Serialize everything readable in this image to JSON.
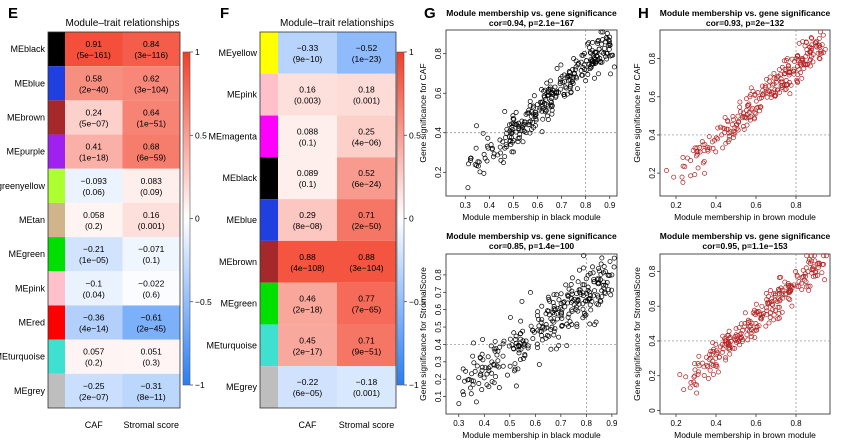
{
  "panels": {
    "E": {
      "letter": "E",
      "title": "Module–trait relationships",
      "rows": [
        {
          "label": "MEblack",
          "color": "#000000",
          "cells": [
            {
              "r": 0.91,
              "p": "(5e−161)"
            },
            {
              "r": 0.84,
              "p": "(3e−116)"
            }
          ]
        },
        {
          "label": "MEblue",
          "color": "#1f3fe0",
          "cells": [
            {
              "r": 0.58,
              "p": "(2e−40)"
            },
            {
              "r": 0.62,
              "p": "(3e−104)"
            }
          ]
        },
        {
          "label": "MEbrown",
          "color": "#a5292a",
          "cells": [
            {
              "r": 0.24,
              "p": "(5e−07)"
            },
            {
              "r": 0.64,
              "p": "(1e−51)"
            }
          ]
        },
        {
          "label": "MEpurple",
          "color": "#a020f0",
          "cells": [
            {
              "r": 0.41,
              "p": "(1e−18)"
            },
            {
              "r": 0.68,
              "p": "(6e−59)"
            }
          ]
        },
        {
          "label": "MEgreenyellow",
          "color": "#adff2f",
          "cells": [
            {
              "r": -0.093,
              "p": "(0.06)"
            },
            {
              "r": 0.083,
              "p": "(0.09)"
            }
          ]
        },
        {
          "label": "MEtan",
          "color": "#d2b48c",
          "cells": [
            {
              "r": 0.058,
              "p": "(0.2)"
            },
            {
              "r": 0.16,
              "p": "(0.001)"
            }
          ]
        },
        {
          "label": "MEgreen",
          "color": "#00e000",
          "cells": [
            {
              "r": -0.21,
              "p": "(1e−05)"
            },
            {
              "r": -0.071,
              "p": "(0.1)"
            }
          ]
        },
        {
          "label": "MEpink",
          "color": "#ffc0cb",
          "cells": [
            {
              "r": -0.1,
              "p": "(0.04)"
            },
            {
              "r": -0.022,
              "p": "(0.6)"
            }
          ]
        },
        {
          "label": "MEred",
          "color": "#ff0000",
          "cells": [
            {
              "r": -0.36,
              "p": "(4e−14)"
            },
            {
              "r": -0.61,
              "p": "(2e−45)"
            }
          ]
        },
        {
          "label": "MEturquoise",
          "color": "#40e0d0",
          "cells": [
            {
              "r": 0.057,
              "p": "(0.2)"
            },
            {
              "r": 0.051,
              "p": "(0.3)"
            }
          ]
        },
        {
          "label": "MEgrey",
          "color": "#bebebe",
          "cells": [
            {
              "r": -0.25,
              "p": "(2e−07)"
            },
            {
              "r": -0.31,
              "p": "(8e−11)"
            }
          ]
        }
      ],
      "columns": [
        "CAF",
        "Stromal score"
      ],
      "scale_ticks": [
        "1",
        "0.5",
        "0",
        "−0.5",
        "−1"
      ]
    },
    "F": {
      "letter": "F",
      "title": "Module–trait relationships",
      "rows": [
        {
          "label": "MEyellow",
          "color": "#ffff00",
          "cells": [
            {
              "r": -0.33,
              "p": "(9e−10)"
            },
            {
              "r": -0.52,
              "p": "(1e−23)"
            }
          ]
        },
        {
          "label": "MEpink",
          "color": "#ffc0cb",
          "cells": [
            {
              "r": 0.16,
              "p": "(0.003)"
            },
            {
              "r": 0.18,
              "p": "(0.001)"
            }
          ]
        },
        {
          "label": "MEmagenta",
          "color": "#ff00ff",
          "cells": [
            {
              "r": 0.088,
              "p": "(0.1)"
            },
            {
              "r": 0.25,
              "p": "(4e−06)"
            }
          ]
        },
        {
          "label": "MEblack",
          "color": "#000000",
          "cells": [
            {
              "r": 0.089,
              "p": "(0.1)"
            },
            {
              "r": 0.52,
              "p": "(6e−24)"
            }
          ]
        },
        {
          "label": "MEblue",
          "color": "#1f3fe0",
          "cells": [
            {
              "r": 0.29,
              "p": "(8e−08)"
            },
            {
              "r": 0.71,
              "p": "(2e−50)"
            }
          ]
        },
        {
          "label": "MEbrown",
          "color": "#a5292a",
          "cells": [
            {
              "r": 0.88,
              "p": "(4e−108)"
            },
            {
              "r": 0.88,
              "p": "(3e−104)"
            }
          ]
        },
        {
          "label": "MEgreen",
          "color": "#00e000",
          "cells": [
            {
              "r": 0.46,
              "p": "(2e−18)"
            },
            {
              "r": 0.77,
              "p": "(7e−65)"
            }
          ]
        },
        {
          "label": "MEturquoise",
          "color": "#40e0d0",
          "cells": [
            {
              "r": 0.45,
              "p": "(2e−17)"
            },
            {
              "r": 0.71,
              "p": "(9e−51)"
            }
          ]
        },
        {
          "label": "MEgrey",
          "color": "#bebebe",
          "cells": [
            {
              "r": -0.22,
              "p": "(6e−05)"
            },
            {
              "r": -0.18,
              "p": "(0.001)"
            }
          ]
        }
      ],
      "columns": [
        "CAF",
        "Stromal score"
      ],
      "scale_ticks": [
        "1",
        "0.5",
        "0",
        "−0.5",
        "−1"
      ]
    },
    "G": {
      "letter": "G"
    },
    "H": {
      "letter": "H"
    }
  },
  "chart_data": [
    {
      "type": "heatmap",
      "panel": "E",
      "title": "Module–trait relationships",
      "rows": [
        "MEblack",
        "MEblue",
        "MEbrown",
        "MEpurple",
        "MEgreenyellow",
        "MEtan",
        "MEgreen",
        "MEpink",
        "MEred",
        "MEturquoise",
        "MEgrey"
      ],
      "columns": [
        "CAF",
        "Stromal score"
      ],
      "values": [
        [
          0.91,
          0.84
        ],
        [
          0.58,
          0.62
        ],
        [
          0.24,
          0.64
        ],
        [
          0.41,
          0.68
        ],
        [
          -0.093,
          0.083
        ],
        [
          0.058,
          0.16
        ],
        [
          -0.21,
          -0.071
        ],
        [
          -0.1,
          -0.022
        ],
        [
          -0.36,
          -0.61
        ],
        [
          0.057,
          0.051
        ],
        [
          -0.25,
          -0.31
        ]
      ],
      "color_range": [
        -1,
        1
      ]
    },
    {
      "type": "heatmap",
      "panel": "F",
      "title": "Module–trait relationships",
      "rows": [
        "MEyellow",
        "MEpink",
        "MEmagenta",
        "MEblack",
        "MEblue",
        "MEbrown",
        "MEgreen",
        "MEturquoise",
        "MEgrey"
      ],
      "columns": [
        "CAF",
        "Stromal score"
      ],
      "values": [
        [
          -0.33,
          -0.52
        ],
        [
          0.16,
          0.18
        ],
        [
          0.088,
          0.25
        ],
        [
          0.089,
          0.52
        ],
        [
          0.29,
          0.71
        ],
        [
          0.88,
          0.88
        ],
        [
          0.46,
          0.77
        ],
        [
          0.45,
          0.71
        ],
        [
          -0.22,
          -0.18
        ]
      ],
      "color_range": [
        -1,
        1
      ]
    },
    {
      "type": "scatter",
      "panel": "G-top",
      "color": "#000000",
      "title": "Module membership vs. gene significance",
      "subtitle": "cor=0.94, p=2.1e−167",
      "xlabel": "Module membership in black module",
      "ylabel": "Gene significance for CAF",
      "xlim": [
        0.22,
        0.93
      ],
      "ylim": [
        0.08,
        0.92
      ],
      "xticks": [
        0.3,
        0.4,
        0.5,
        0.6,
        0.7,
        0.8,
        0.9
      ],
      "yticks": [
        0.2,
        0.4,
        0.6,
        0.8
      ],
      "ref_x": 0.8,
      "ref_y": 0.4,
      "trend": {
        "x0": 0.28,
        "x1": 0.9,
        "y_at_x0": 0.15,
        "y_at_x1": 0.85,
        "spread": 0.05
      },
      "n_points": 300,
      "seed": 11
    },
    {
      "type": "scatter",
      "panel": "G-bottom",
      "color": "#000000",
      "title": "Module membership vs. gene significance",
      "subtitle": "cor=0.85, p=1.4e−100",
      "xlabel": "Module membership in black module",
      "ylabel": "Gene significance for StromalScore",
      "xlim": [
        0.25,
        0.92
      ],
      "ylim": [
        0.0,
        0.92
      ],
      "xticks": [
        0.3,
        0.4,
        0.5,
        0.6,
        0.7,
        0.8,
        0.9
      ],
      "yticks": [
        0.1,
        0.2,
        0.3,
        0.4,
        0.5,
        0.6,
        0.7,
        0.8
      ],
      "ref_x": 0.8,
      "ref_y": 0.4,
      "trend": {
        "x0": 0.3,
        "x1": 0.9,
        "y_at_x0": 0.15,
        "y_at_x1": 0.8,
        "spread": 0.08
      },
      "n_points": 300,
      "seed": 23
    },
    {
      "type": "scatter",
      "panel": "H-top",
      "color": "#b22222",
      "title": "Module membership vs. gene significance",
      "subtitle": "cor=0.93, p=2e−132",
      "xlabel": "Module membership in brown module",
      "ylabel": "Gene significance for CAF",
      "xlim": [
        0.12,
        0.97
      ],
      "ylim": [
        0.08,
        0.95
      ],
      "xticks": [
        0.2,
        0.4,
        0.6,
        0.8
      ],
      "yticks": [
        0.2,
        0.4,
        0.6,
        0.8
      ],
      "ref_x": 0.8,
      "ref_y": 0.4,
      "trend": {
        "x0": 0.18,
        "x1": 0.93,
        "y_at_x0": 0.15,
        "y_at_x1": 0.88,
        "spread": 0.045
      },
      "n_points": 260,
      "seed": 37
    },
    {
      "type": "scatter",
      "panel": "H-bottom",
      "color": "#b22222",
      "title": "Module membership vs. gene significance",
      "subtitle": "cor=0.95, p=1.1e−153",
      "xlabel": "Module membership in brown module",
      "ylabel": "Gene significance for StromalScore",
      "xlim": [
        0.12,
        0.97
      ],
      "ylim": [
        -0.02,
        0.9
      ],
      "xticks": [
        0.2,
        0.4,
        0.6,
        0.8
      ],
      "yticks": [
        0.0,
        0.2,
        0.4,
        0.6,
        0.8
      ],
      "ref_x": 0.8,
      "ref_y": 0.4,
      "trend": {
        "x0": 0.18,
        "x1": 0.93,
        "y_at_x0": 0.07,
        "y_at_x1": 0.87,
        "spread": 0.045
      },
      "n_points": 260,
      "seed": 53
    }
  ]
}
